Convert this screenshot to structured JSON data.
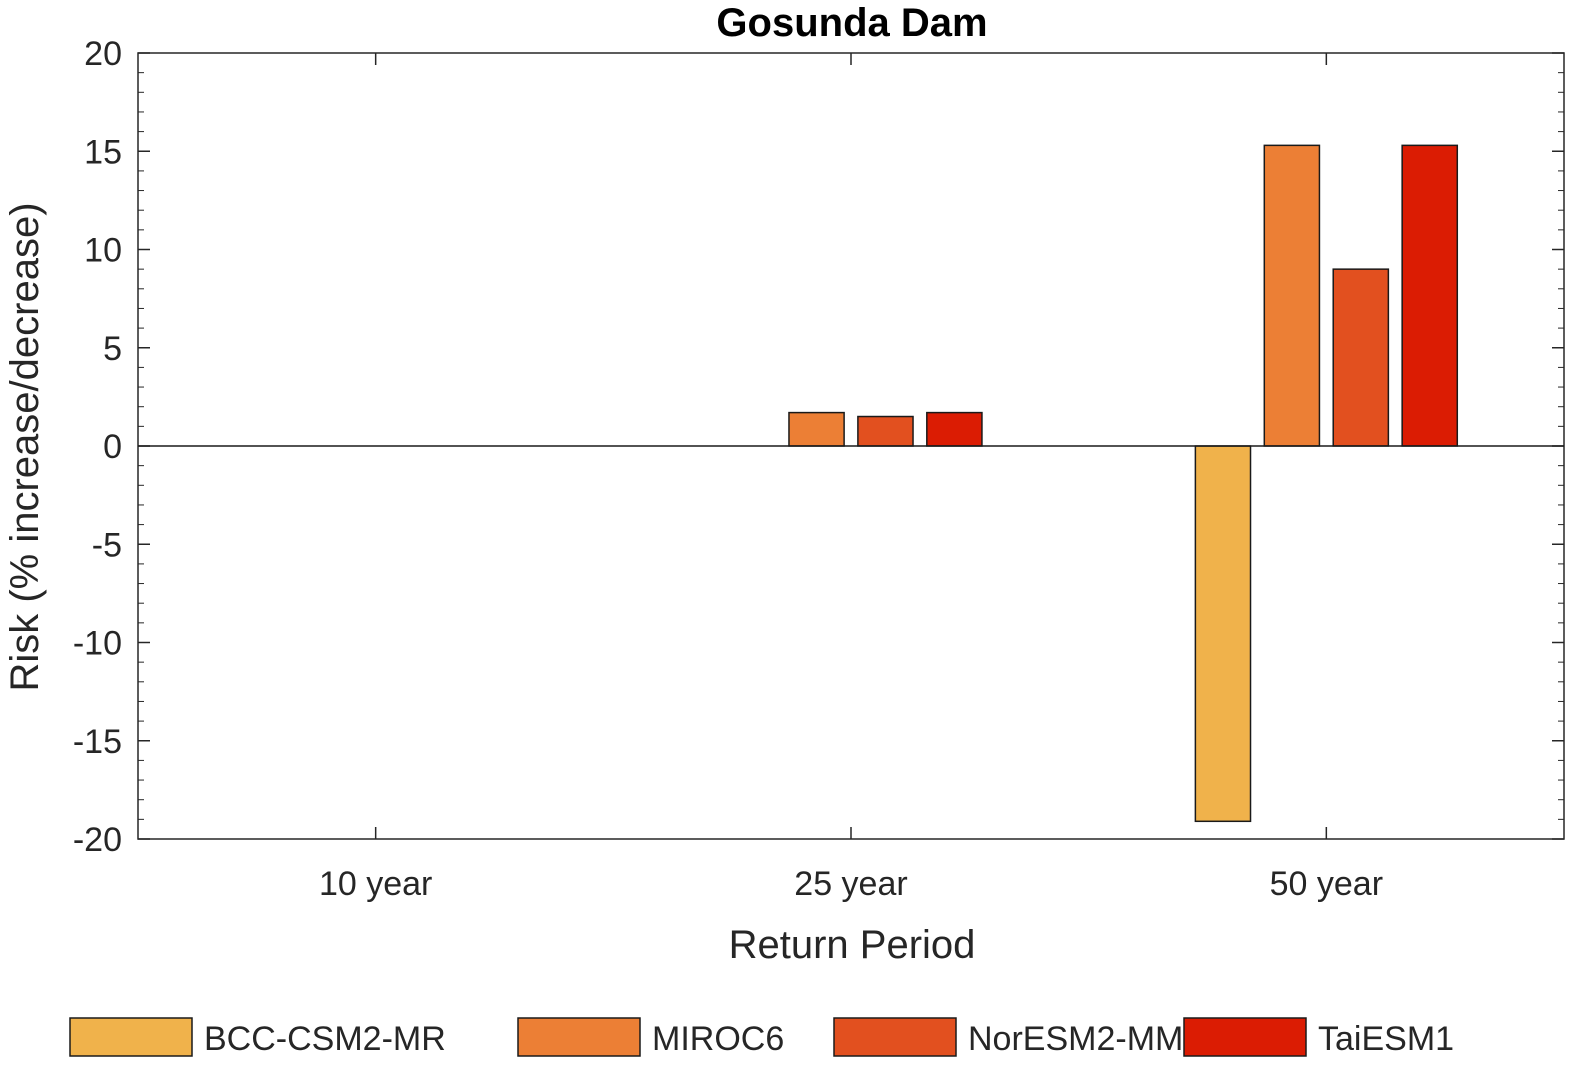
{
  "chart_data": {
    "type": "bar",
    "title": "Gosunda Dam",
    "xlabel": "Return Period",
    "ylabel": "Risk (% increase/decrease)",
    "categories": [
      "10 year",
      "25 year",
      "50 year"
    ],
    "ylim": [
      -20,
      20
    ],
    "yticks": [
      -20,
      -15,
      -10,
      -5,
      0,
      5,
      10,
      15,
      20
    ],
    "grid": false,
    "legend_position": "bottom",
    "series": [
      {
        "name": "BCC-CSM2-MR",
        "color": "#F0B24B",
        "values": [
          0,
          0,
          -19.1
        ]
      },
      {
        "name": "MIROC6",
        "color": "#EC7F35",
        "values": [
          0,
          1.7,
          15.3
        ]
      },
      {
        "name": "NorESM2-MM",
        "color": "#E2501F",
        "values": [
          0,
          1.5,
          9.0
        ]
      },
      {
        "name": "TaiESM1",
        "color": "#DB1C03",
        "values": [
          0,
          1.7,
          15.3
        ]
      }
    ]
  }
}
